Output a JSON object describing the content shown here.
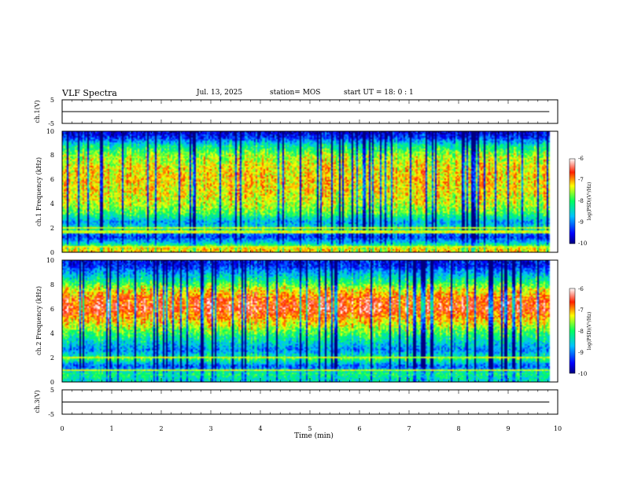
{
  "header": {
    "title": "VLF Spectra",
    "date": "Jul. 13, 2025",
    "station": "station= MOS",
    "start": "start UT = 18: 0 : 1"
  },
  "chart_data": [
    {
      "type": "line",
      "ylabel": "ch.1(V)",
      "ylim": [
        -5,
        5
      ],
      "yticks": [
        "5",
        "-5"
      ],
      "xlim": [
        0,
        10
      ],
      "series": [
        {
          "x": [
            0,
            9.83
          ],
          "values": [
            0,
            0
          ]
        }
      ]
    },
    {
      "type": "heatmap",
      "ylabel": "ch.1 Frequency (kHz)",
      "ylim": [
        0,
        10
      ],
      "yticks": [
        "0",
        "2",
        "4",
        "6",
        "8",
        "10"
      ],
      "xlim": [
        0,
        10
      ],
      "data_xrange": [
        0,
        9.83
      ],
      "band_profile": [
        [
          0.3,
          -7.2
        ],
        [
          0.8,
          -8.6
        ],
        [
          1.3,
          -9.4
        ],
        [
          1.9,
          -8.2
        ],
        [
          2.5,
          -8.9
        ],
        [
          3.2,
          -7.9
        ],
        [
          4.0,
          -7.5
        ],
        [
          5.0,
          -7.3
        ],
        [
          6.0,
          -7.2
        ],
        [
          7.0,
          -7.3
        ],
        [
          8.0,
          -7.6
        ],
        [
          8.8,
          -8.3
        ],
        [
          9.4,
          -9.3
        ],
        [
          9.9,
          -9.7
        ]
      ],
      "lines_khz": [
        0.5,
        1.7,
        2.0
      ],
      "colorbar": {
        "label": "log(PSD)(V²/Hz)",
        "range": [
          -10,
          -6
        ],
        "ticks": [
          "-6",
          "-7",
          "-8",
          "-9",
          "-10"
        ]
      }
    },
    {
      "type": "heatmap",
      "ylabel": "ch.2 Frequency (kHz)",
      "ylim": [
        0,
        10
      ],
      "yticks": [
        "0",
        "2",
        "4",
        "6",
        "8",
        "10"
      ],
      "xlim": [
        0,
        10
      ],
      "data_xrange": [
        0,
        9.83
      ],
      "band_profile": [
        [
          0.2,
          -8.4
        ],
        [
          0.7,
          -8.1
        ],
        [
          1.3,
          -9.2
        ],
        [
          1.9,
          -8.0
        ],
        [
          2.6,
          -9.0
        ],
        [
          3.3,
          -8.5
        ],
        [
          4.2,
          -7.8
        ],
        [
          5.0,
          -7.2
        ],
        [
          6.0,
          -6.6
        ],
        [
          6.8,
          -6.8
        ],
        [
          7.6,
          -7.4
        ],
        [
          8.3,
          -8.2
        ],
        [
          9.0,
          -8.9
        ],
        [
          9.6,
          -9.5
        ]
      ],
      "lines_khz": [
        1.0,
        2.0
      ],
      "colorbar": {
        "label": "log(PSD)(V²/Hz)",
        "range": [
          -10,
          -6
        ],
        "ticks": [
          "-6",
          "-7",
          "-8",
          "-9",
          "-10"
        ]
      }
    },
    {
      "type": "line",
      "ylabel": "ch.3(V)",
      "ylim": [
        -5,
        5
      ],
      "yticks": [
        "5",
        "-5"
      ],
      "xlim": [
        0,
        10
      ],
      "xlabel": "Time (min)",
      "xticks": [
        "0",
        "1",
        "2",
        "3",
        "4",
        "5",
        "6",
        "7",
        "8",
        "9",
        "10"
      ],
      "series": [
        {
          "x": [
            0,
            9.83
          ],
          "values": [
            0,
            0
          ]
        }
      ]
    }
  ]
}
